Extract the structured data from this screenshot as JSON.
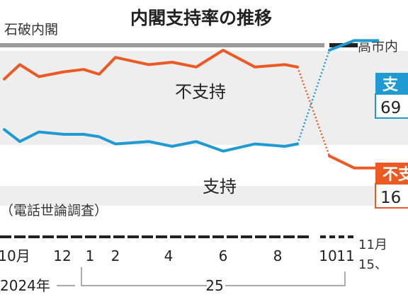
{
  "chart_data": {
    "type": "line",
    "title": "内閣支持率の推移",
    "periods": {
      "left": "石破内閣",
      "right": "高市内"
    },
    "note": "（電話世論調査）",
    "colors": {
      "support": "#1f9ad2",
      "disapprove": "#ec5a24",
      "bands": "#eeeeee",
      "axis": "#222222"
    },
    "x_tick_labels": [
      "10月",
      "12",
      "1",
      "2",
      "4",
      "6",
      "8",
      "10",
      "11"
    ],
    "x_extra_label": [
      "11月",
      "15、"
    ],
    "year_labels": [
      "2024年",
      "25"
    ],
    "series": [
      {
        "name": "支持",
        "values": [
          [
            "2024-10",
            32
          ],
          [
            "2024-11",
            27
          ],
          [
            "2024-11",
            31
          ],
          [
            "2024-12",
            30
          ],
          [
            "2025-01",
            30
          ],
          [
            "2025-02",
            29
          ],
          [
            "2025-03",
            26
          ],
          [
            "2025-04",
            27
          ],
          [
            "2025-05",
            25
          ],
          [
            "2025-06",
            27
          ],
          [
            "2025-07",
            23
          ],
          [
            "2025-08",
            26
          ],
          [
            "2025-09",
            25
          ],
          [
            "2025-09",
            26
          ],
          [
            "2025-10",
            65
          ],
          [
            "2025-11",
            69
          ]
        ]
      },
      {
        "name": "不支持",
        "values": [
          [
            "2024-10",
            53
          ],
          [
            "2024-11",
            59
          ],
          [
            "2024-11",
            54
          ],
          [
            "2024-12",
            56
          ],
          [
            "2025-01",
            57
          ],
          [
            "2025-02",
            55
          ],
          [
            "2025-03",
            62
          ],
          [
            "2025-04",
            59
          ],
          [
            "2025-05",
            60
          ],
          [
            "2025-06",
            58
          ],
          [
            "2025-07",
            65
          ],
          [
            "2025-08",
            58
          ],
          [
            "2025-09",
            59
          ],
          [
            "2025-09",
            58
          ],
          [
            "2025-10",
            21
          ],
          [
            "2025-11",
            16
          ]
        ]
      }
    ],
    "end_labels": [
      {
        "series": "支持",
        "name": "支",
        "value": "69"
      },
      {
        "series": "不支持",
        "name": "不支",
        "value": "16"
      }
    ]
  }
}
